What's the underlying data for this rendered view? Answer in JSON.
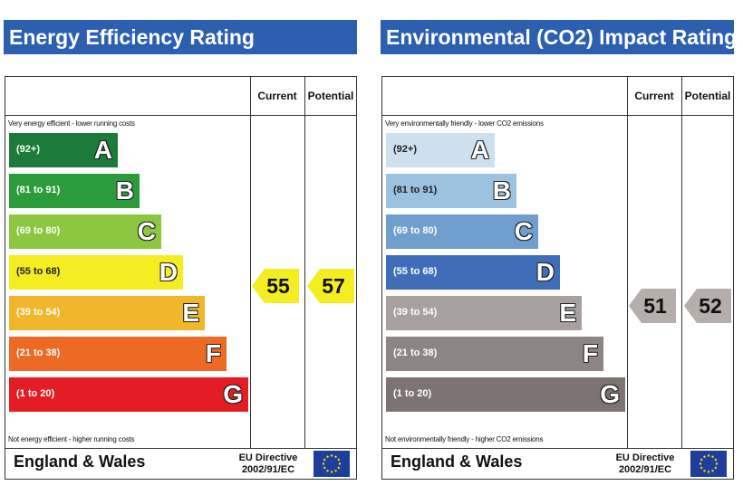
{
  "chart_data": [
    {
      "type": "energy-rating",
      "title": "Energy Efficiency Rating",
      "column_headers": {
        "current": "Current",
        "potential": "Potential"
      },
      "top_note": "Very energy efficient - lower running costs",
      "bottom_note": "Not energy efficient - higher running costs",
      "bands": [
        {
          "letter": "A",
          "range": "(92+)",
          "color": "#1c7a3a"
        },
        {
          "letter": "B",
          "range": "(81 to 91)",
          "color": "#2c9c3a"
        },
        {
          "letter": "C",
          "range": "(69 to 80)",
          "color": "#8dc63f"
        },
        {
          "letter": "D",
          "range": "(55 to 68)",
          "color": "#f3ed22"
        },
        {
          "letter": "E",
          "range": "(39 to 54)",
          "color": "#f0b72c"
        },
        {
          "letter": "F",
          "range": "(21 to 38)",
          "color": "#ec6a23"
        },
        {
          "letter": "G",
          "range": "(1 to 20)",
          "color": "#e31d23"
        }
      ],
      "current": 55,
      "potential": 57,
      "arrow_color": "#f3ed22",
      "region": "England & Wales",
      "directive": [
        "EU Directive",
        "2002/91/EC"
      ]
    },
    {
      "type": "energy-rating",
      "title": "Environmental (CO2) Impact Rating",
      "column_headers": {
        "current": "Current",
        "potential": "Potential"
      },
      "top_note": "Very environmentally friendly - lower CO2 emissions",
      "bottom_note": "Not environmentally friendly - higher CO2 emissions",
      "bands": [
        {
          "letter": "A",
          "range": "(92+)",
          "color": "#cde0f0"
        },
        {
          "letter": "B",
          "range": "(81 to 91)",
          "color": "#9cc2e0"
        },
        {
          "letter": "C",
          "range": "(69 to 80)",
          "color": "#6f9ecf"
        },
        {
          "letter": "D",
          "range": "(55 to 68)",
          "color": "#3f6db8"
        },
        {
          "letter": "E",
          "range": "(39 to 54)",
          "color": "#a7a09e"
        },
        {
          "letter": "F",
          "range": "(21 to 38)",
          "color": "#8d8583"
        },
        {
          "letter": "G",
          "range": "(1 to 20)",
          "color": "#7c7372"
        }
      ],
      "current": 51,
      "potential": 52,
      "arrow_color": "#b5aeab",
      "region": "England & Wales",
      "directive": [
        "EU Directive",
        "2002/91/EC"
      ]
    }
  ]
}
